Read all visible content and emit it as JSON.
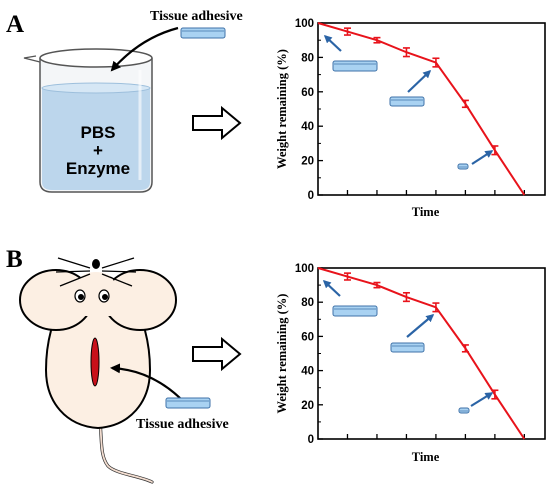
{
  "panel_a": {
    "letter": "A",
    "tissue_label": "Tissue adhesive",
    "beaker_text": [
      "PBS",
      "+",
      "Enzyme"
    ]
  },
  "panel_b": {
    "letter": "B",
    "tissue_label": "Tissue adhesive"
  },
  "colors": {
    "line": "#e8131b",
    "disc_fill": "#a9d2f2",
    "disc_stroke": "#3f72a8",
    "arrow_blue": "#2b64a6",
    "liquid": "#bcd6ec",
    "mouse_fill": "#fcefe3",
    "incision": "#c8101a"
  },
  "chart_data": [
    {
      "type": "line",
      "title": "",
      "xlabel": "Time",
      "ylabel": "Weight remaining (%)",
      "ylim": [
        0,
        100
      ],
      "yticks": [
        0,
        20,
        40,
        60,
        80,
        100
      ],
      "x": [
        0,
        1,
        2,
        3,
        4,
        5,
        6,
        7
      ],
      "xlim": [
        0,
        7.7
      ],
      "xtick_labels_shown": false,
      "series": [
        {
          "values": [
            100,
            95,
            90,
            83,
            77,
            53,
            26,
            0
          ],
          "error": [
            0,
            2,
            1.5,
            2.5,
            2.5,
            2,
            2.5,
            0
          ]
        }
      ],
      "grid": false,
      "legend": "none"
    },
    {
      "type": "line",
      "title": "",
      "xlabel": "Time",
      "ylabel": "Weight remaining (%)",
      "ylim": [
        0,
        100
      ],
      "yticks": [
        0,
        20,
        40,
        60,
        80,
        100
      ],
      "x": [
        0,
        1,
        2,
        3,
        4,
        5,
        6,
        7
      ],
      "xlim": [
        0,
        7.7
      ],
      "xtick_labels_shown": false,
      "series": [
        {
          "values": [
            100,
            95,
            90,
            83,
            77,
            53,
            26,
            0
          ],
          "error": [
            0,
            2,
            1.5,
            2.5,
            2.5,
            2,
            2.5,
            0
          ]
        }
      ],
      "grid": false,
      "legend": "none"
    }
  ]
}
